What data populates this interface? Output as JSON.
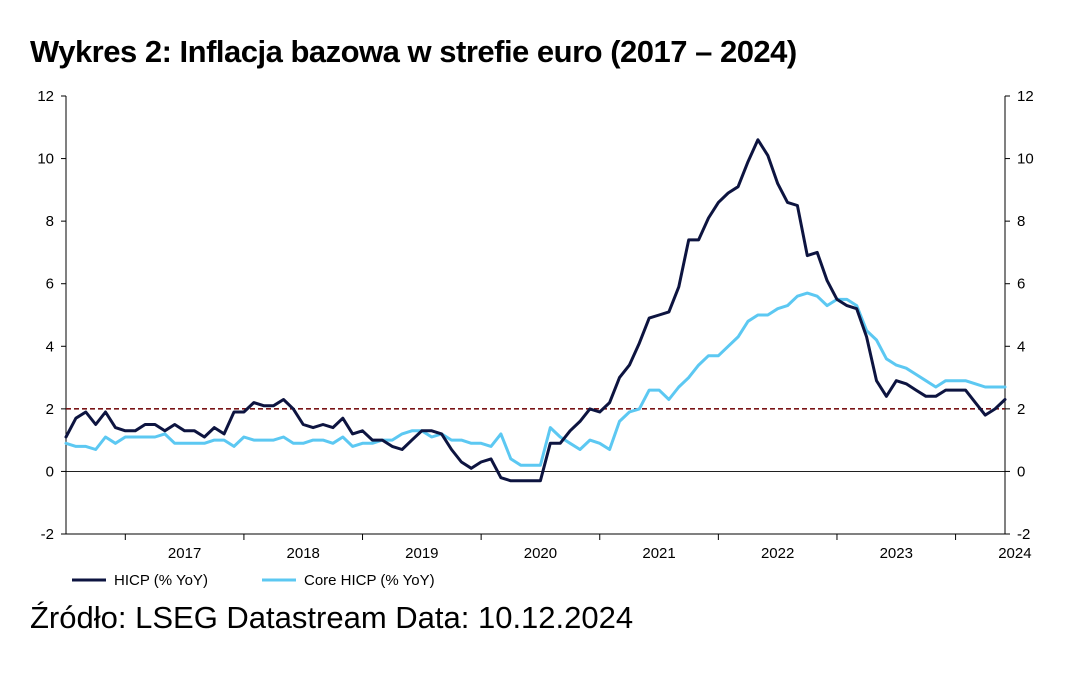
{
  "title": "Wykres 2: Inflacja bazowa w strefie euro (2017 – 2024)",
  "source": "Źródło: LSEG Datastream Data: 10.12.2024",
  "chart_data": {
    "type": "line",
    "x_start": "2016-07",
    "x_end": "2024-11",
    "x_tick_labels": [
      "2017",
      "2018",
      "2019",
      "2020",
      "2021",
      "2022",
      "2023",
      "2024"
    ],
    "ylim": [
      -2,
      12
    ],
    "y_ticks": [
      -2,
      0,
      2,
      4,
      6,
      8,
      10,
      12
    ],
    "y_tick_labels": [
      "-2",
      "0",
      "2",
      "4",
      "6",
      "8",
      "10",
      "12"
    ],
    "reference_line": 2,
    "legend_position": "bottom-left",
    "grid": false,
    "series": [
      {
        "name": "HICP (% YoY)",
        "color": "#0d1440",
        "values": [
          1.1,
          1.7,
          1.9,
          1.5,
          1.9,
          1.4,
          1.3,
          1.3,
          1.5,
          1.5,
          1.3,
          1.5,
          1.3,
          1.3,
          1.1,
          1.4,
          1.2,
          1.9,
          1.9,
          2.2,
          2.1,
          2.1,
          2.3,
          2.0,
          1.5,
          1.4,
          1.5,
          1.4,
          1.7,
          1.2,
          1.3,
          1.0,
          1.0,
          0.8,
          0.7,
          1.0,
          1.3,
          1.3,
          1.2,
          0.7,
          0.3,
          0.1,
          0.3,
          0.4,
          -0.2,
          -0.3,
          -0.3,
          -0.3,
          -0.3,
          0.9,
          0.9,
          1.3,
          1.6,
          2.0,
          1.9,
          2.2,
          3.0,
          3.4,
          4.1,
          4.9,
          5.0,
          5.1,
          5.9,
          7.4,
          7.4,
          8.1,
          8.6,
          8.9,
          9.1,
          9.9,
          10.6,
          10.1,
          9.2,
          8.6,
          8.5,
          6.9,
          7.0,
          6.1,
          5.5,
          5.3,
          5.2,
          4.3,
          2.9,
          2.4,
          2.9,
          2.8,
          2.6,
          2.4,
          2.4,
          2.6,
          2.6,
          2.6,
          2.2,
          1.8,
          2.0,
          2.3
        ]
      },
      {
        "name": "Core HICP (% YoY)",
        "color": "#5cc8f2",
        "values": [
          0.9,
          0.8,
          0.8,
          0.7,
          1.1,
          0.9,
          1.1,
          1.1,
          1.1,
          1.1,
          1.2,
          0.9,
          0.9,
          0.9,
          0.9,
          1.0,
          1.0,
          0.8,
          1.1,
          1.0,
          1.0,
          1.0,
          1.1,
          0.9,
          0.9,
          1.0,
          1.0,
          0.9,
          1.1,
          0.8,
          0.9,
          0.9,
          1.0,
          1.0,
          1.2,
          1.3,
          1.3,
          1.1,
          1.2,
          1.0,
          1.0,
          0.9,
          0.9,
          0.8,
          1.2,
          0.4,
          0.2,
          0.2,
          0.2,
          1.4,
          1.1,
          0.9,
          0.7,
          1.0,
          0.9,
          0.7,
          1.6,
          1.9,
          2.0,
          2.6,
          2.6,
          2.3,
          2.7,
          3.0,
          3.4,
          3.7,
          3.7,
          4.0,
          4.3,
          4.8,
          5.0,
          5.0,
          5.2,
          5.3,
          5.6,
          5.7,
          5.6,
          5.3,
          5.5,
          5.5,
          5.3,
          4.5,
          4.2,
          3.6,
          3.4,
          3.3,
          3.1,
          2.9,
          2.7,
          2.9,
          2.9,
          2.9,
          2.8,
          2.7,
          2.7,
          2.7
        ]
      }
    ]
  }
}
